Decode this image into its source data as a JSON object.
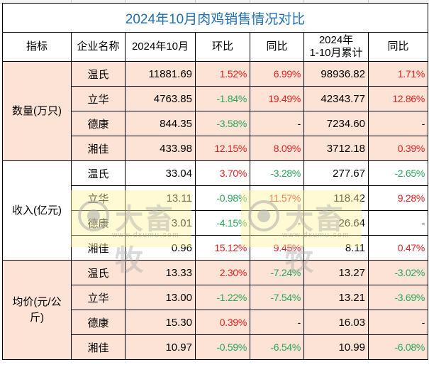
{
  "title": "2024年10月肉鸡销售情况对比",
  "headers": {
    "indicator": "指标",
    "company": "企业名称",
    "oct": "2024年10月",
    "mom": "环比",
    "yoy": "同比",
    "ytd_line1": "2024年",
    "ytd_line2": "1-10月累计",
    "ytd_yoy": "同比"
  },
  "sections": [
    {
      "label": "数量(万只)",
      "rows": [
        {
          "company": "温氏",
          "oct": "11881.69",
          "mom": "1.52%",
          "mom_dir": "up",
          "yoy": "6.99%",
          "yoy_dir": "up",
          "ytd": "98936.82",
          "ytd_yoy": "1.71%",
          "ytd_yoy_dir": "up"
        },
        {
          "company": "立华",
          "oct": "4763.85",
          "mom": "-1.84%",
          "mom_dir": "down",
          "yoy": "19.49%",
          "yoy_dir": "up",
          "ytd": "42343.77",
          "ytd_yoy": "12.86%",
          "ytd_yoy_dir": "up"
        },
        {
          "company": "德康",
          "oct": "844.35",
          "mom": "-3.58%",
          "mom_dir": "down",
          "yoy": "-",
          "yoy_dir": "flat",
          "ytd": "7234.60",
          "ytd_yoy": "-",
          "ytd_yoy_dir": "flat"
        },
        {
          "company": "湘佳",
          "oct": "433.98",
          "mom": "12.15%",
          "mom_dir": "up",
          "yoy": "8.09%",
          "yoy_dir": "up",
          "ytd": "3712.18",
          "ytd_yoy": "0.39%",
          "ytd_yoy_dir": "up"
        }
      ]
    },
    {
      "label": "收入(亿元)",
      "rows": [
        {
          "company": "温氏",
          "oct": "33.04",
          "mom": "3.70%",
          "mom_dir": "up",
          "yoy": "-3.28%",
          "yoy_dir": "down",
          "ytd": "277.67",
          "ytd_yoy": "-2.65%",
          "ytd_yoy_dir": "down"
        },
        {
          "company": "立华",
          "oct": "13.11",
          "mom": "-0.98%",
          "mom_dir": "down",
          "yoy": "11.57%",
          "yoy_dir": "up",
          "ytd": "118.42",
          "ytd_yoy": "9.28%",
          "ytd_yoy_dir": "up"
        },
        {
          "company": "德康",
          "oct": "3.01",
          "mom": "-4.15%",
          "mom_dir": "down",
          "yoy": "-",
          "yoy_dir": "flat",
          "ytd": "26.64",
          "ytd_yoy": "-",
          "ytd_yoy_dir": "flat"
        },
        {
          "company": "湘佳",
          "oct": "0.96",
          "mom": "15.12%",
          "mom_dir": "up",
          "yoy": "9.45%",
          "yoy_dir": "up",
          "ytd": "8.11",
          "ytd_yoy": "0.47%",
          "ytd_yoy_dir": "up"
        }
      ]
    },
    {
      "label": "均价(元/公斤)",
      "rows": [
        {
          "company": "温氏",
          "oct": "13.33",
          "mom": "2.30%",
          "mom_dir": "up",
          "yoy": "-7.24%",
          "yoy_dir": "down",
          "ytd": "13.27",
          "ytd_yoy": "-3.02%",
          "ytd_yoy_dir": "down"
        },
        {
          "company": "立华",
          "oct": "13.00",
          "mom": "-1.22%",
          "mom_dir": "down",
          "yoy": "-7.54%",
          "yoy_dir": "down",
          "ytd": "13.21",
          "ytd_yoy": "-3.69%",
          "ytd_yoy_dir": "down"
        },
        {
          "company": "德康",
          "oct": "15.30",
          "mom": "0.39%",
          "mom_dir": "up",
          "yoy": "-",
          "yoy_dir": "flat",
          "ytd": "16.03",
          "ytd_yoy": "-",
          "ytd_yoy_dir": "flat"
        },
        {
          "company": "湘佳",
          "oct": "10.97",
          "mom": "-0.59%",
          "mom_dir": "down",
          "yoy": "-6.54%",
          "yoy_dir": "down",
          "ytd": "10.99",
          "ytd_yoy": "-6.08%",
          "ytd_yoy_dir": "down"
        }
      ]
    }
  ],
  "watermark": {
    "brand": "大畜牧",
    "url": "www.dxumu.com"
  },
  "colors": {
    "title": "#1f6fb2",
    "up": "#e02020",
    "down": "#2aa65a",
    "peach_bg": "#fde3d6"
  }
}
